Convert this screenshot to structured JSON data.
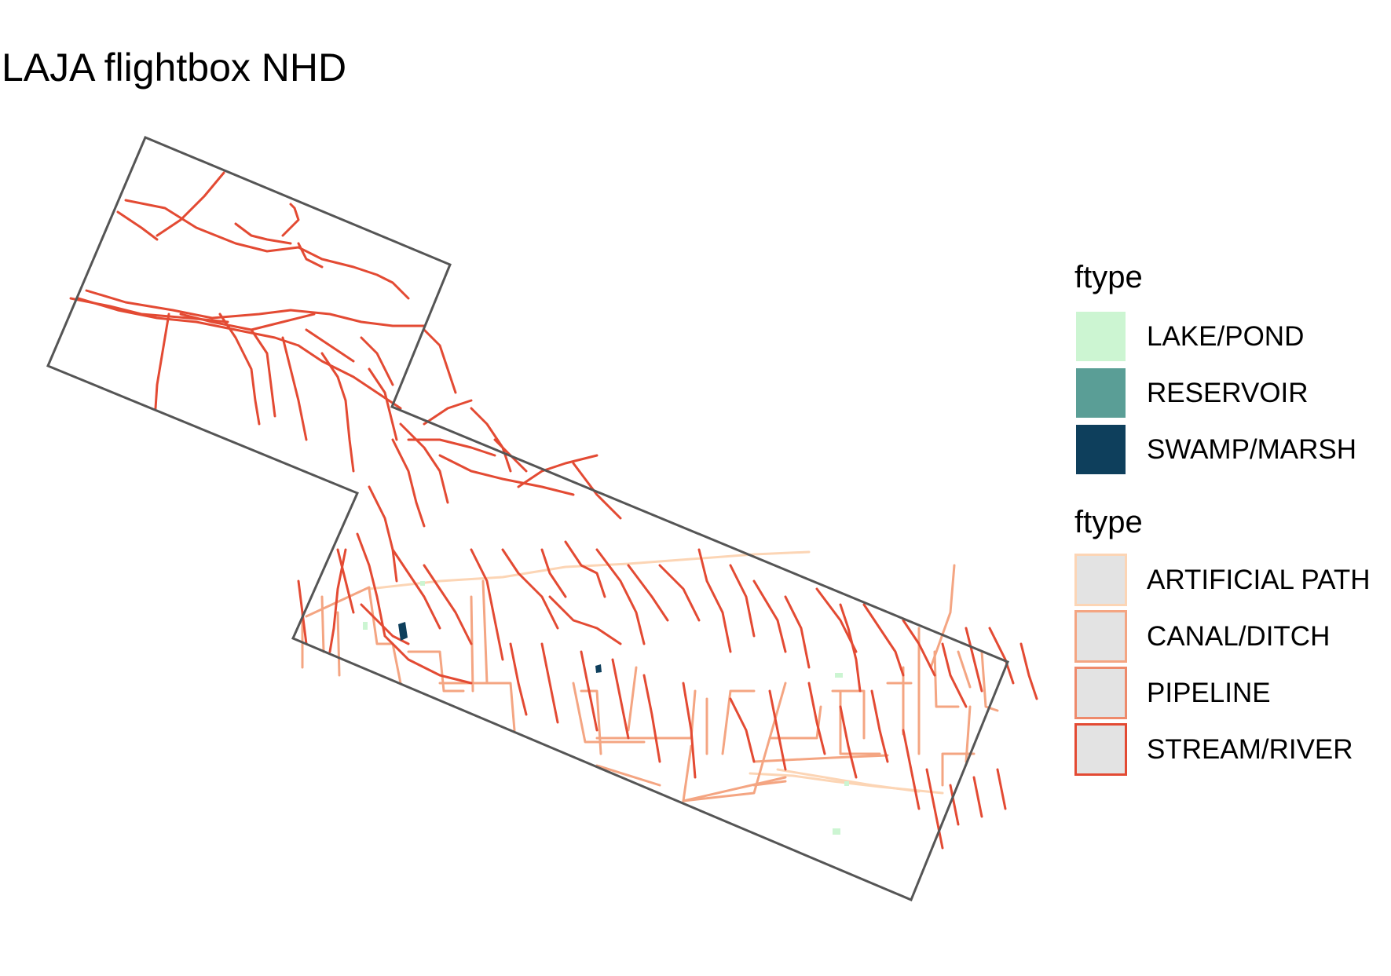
{
  "title": "LAJA flightbox NHD",
  "colors": {
    "boundary": "#555555",
    "stream": "#e34a33",
    "canal": "#f4a582",
    "artificial": "#fcd5b5",
    "pipeline": "#ee8a6b",
    "lake": "#ccf5d2",
    "swamp": "#0e3f5c"
  },
  "legend_polygons": {
    "title": "ftype",
    "items": [
      {
        "label": "LAKE/POND",
        "fill": "#ccf5d2",
        "border": "#ffffff"
      },
      {
        "label": "RESERVOIR",
        "fill": "#5a9e96",
        "border": "#ffffff"
      },
      {
        "label": "SWAMP/MARSH",
        "fill": "#0e3f5c",
        "border": "#ffffff"
      }
    ]
  },
  "legend_lines": {
    "title": "ftype",
    "items": [
      {
        "label": "ARTIFICIAL PATH",
        "fill": "#e3e3e3",
        "border": "#fcd5b5"
      },
      {
        "label": "CANAL/DITCH",
        "fill": "#e3e3e3",
        "border": "#f4a582"
      },
      {
        "label": "PIPELINE",
        "fill": "#e3e3e3",
        "border": "#ee8a6b"
      },
      {
        "label": "STREAM/RIVER",
        "fill": "#e3e3e3",
        "border": "#e34a33"
      }
    ]
  }
}
